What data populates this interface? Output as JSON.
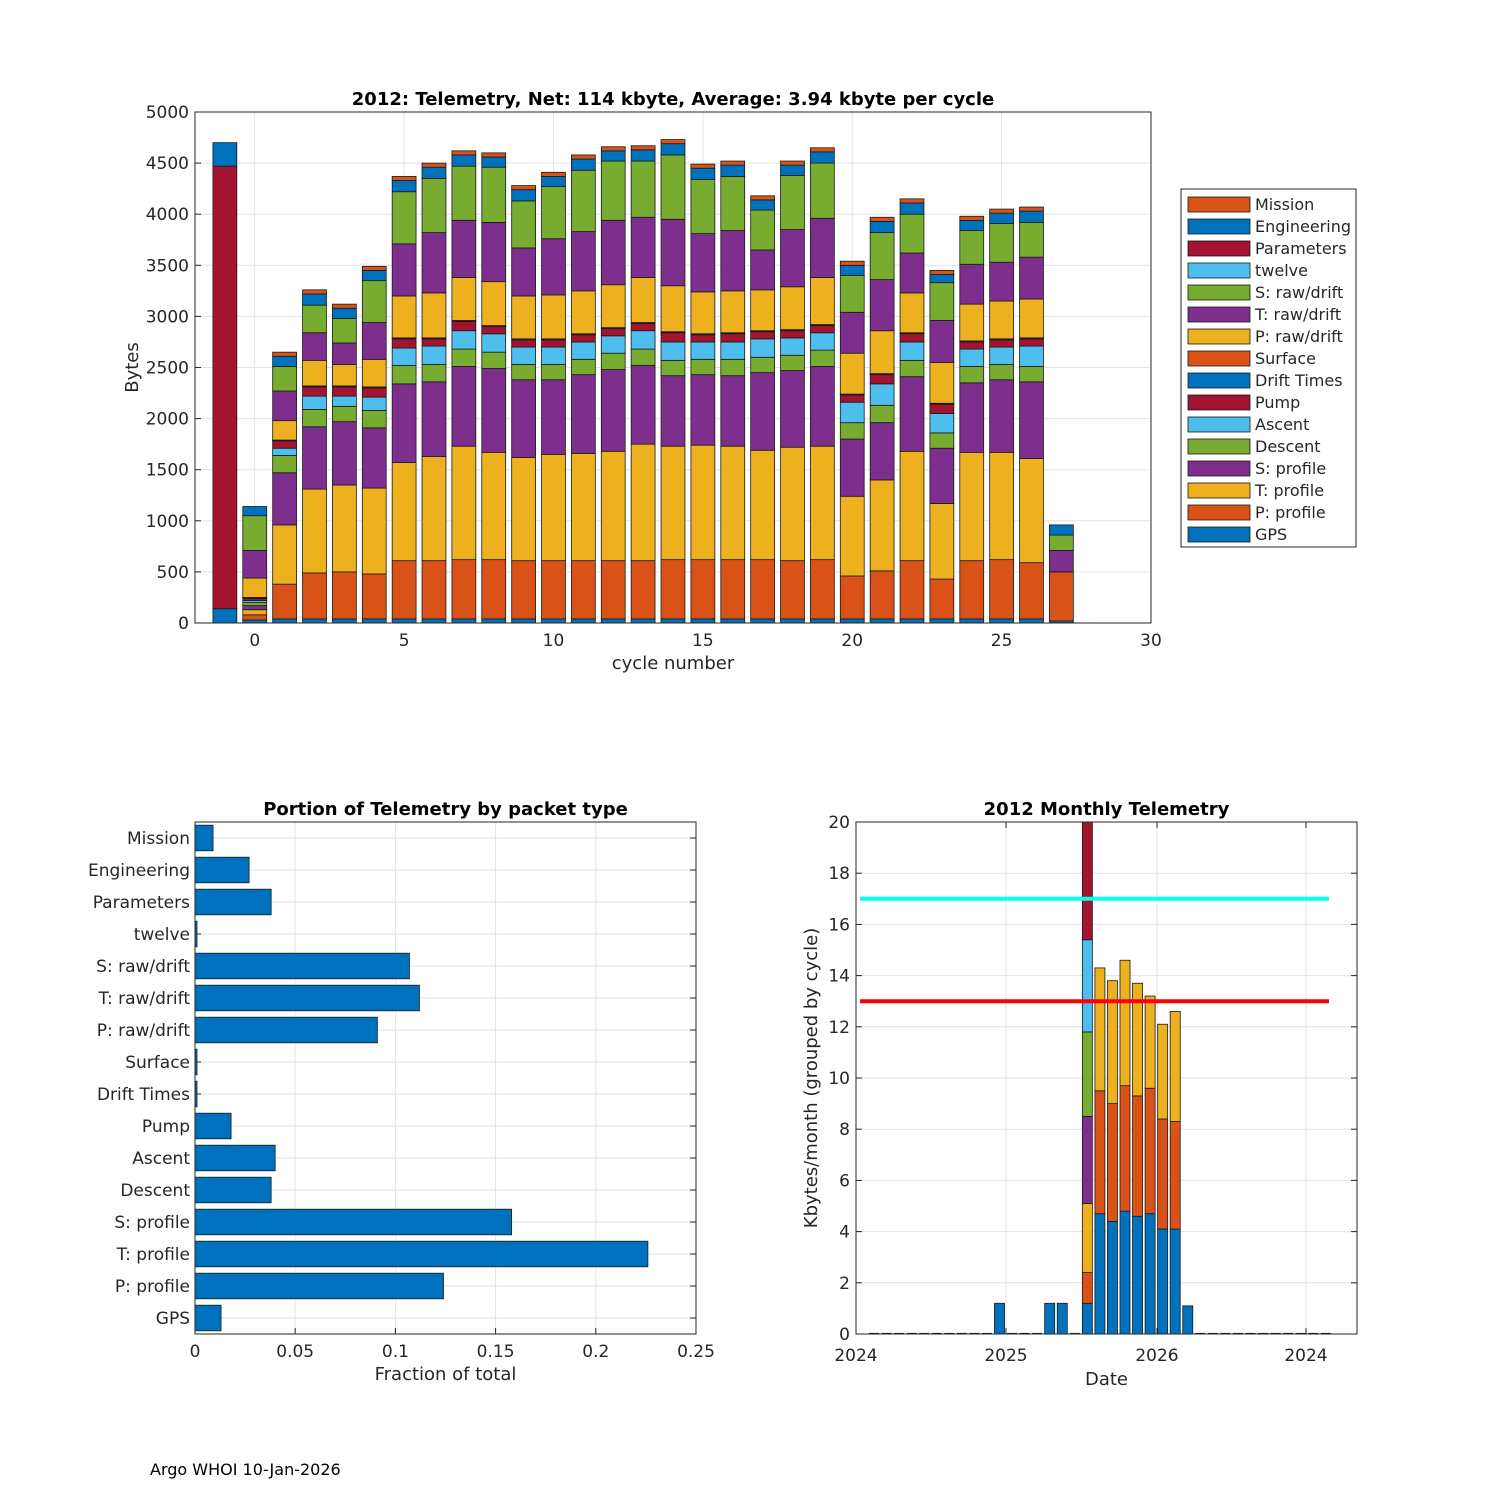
{
  "footer": "Argo WHOI 10-Jan-2026",
  "colors": {
    "Mission": "#D95319",
    "Engineering": "#0072BD",
    "Parameters": "#A2142F",
    "twelve": "#4DBEEE",
    "S: raw/drift": "#77AC30",
    "T: raw/drift": "#7E2F8E",
    "P: raw/drift": "#EDB120",
    "Surface": "#D95319",
    "Drift Times": "#0072BD",
    "Pump": "#A2142F",
    "Ascent": "#4DBEEE",
    "Descent": "#77AC30",
    "S: profile": "#7E2F8E",
    "T: profile": "#EDB120",
    "P: profile": "#D95319",
    "GPS": "#0072BD"
  },
  "chart_data": [
    {
      "type": "bar",
      "stacked": true,
      "title": "2012: Telemetry, Net:    114 kbyte,  Average: 3.94 kbyte per cycle",
      "xlabel": "cycle number",
      "ylabel": "Bytes",
      "xlim": [
        -2,
        30
      ],
      "ylim": [
        0,
        5000
      ],
      "xticks": [
        0,
        5,
        10,
        15,
        20,
        25,
        30
      ],
      "yticks": [
        0,
        500,
        1000,
        1500,
        2000,
        2500,
        3000,
        3500,
        4000,
        4500,
        5000
      ],
      "legend_position": "right",
      "legend": [
        "Mission",
        "Engineering",
        "Parameters",
        "twelve",
        "S: raw/drift",
        "T: raw/drift",
        "P: raw/drift",
        "Surface",
        "Drift Times",
        "Pump",
        "Ascent",
        "Descent",
        "S: profile",
        "T: profile",
        "P: profile",
        "GPS"
      ],
      "stack_order": [
        "GPS",
        "P: profile",
        "T: profile",
        "S: profile",
        "Descent",
        "Ascent",
        "Pump",
        "Drift Times",
        "Surface",
        "P: raw/drift",
        "T: raw/drift",
        "S: raw/drift",
        "twelve",
        "Parameters",
        "Engineering",
        "Mission"
      ],
      "cycles": [
        -1,
        0,
        1,
        2,
        3,
        4,
        5,
        6,
        7,
        8,
        9,
        10,
        11,
        12,
        13,
        14,
        15,
        16,
        17,
        18,
        19,
        20,
        21,
        22,
        23,
        24,
        25,
        26,
        27
      ],
      "series": [
        {
          "name": "GPS",
          "values": [
            140,
            30,
            40,
            40,
            40,
            40,
            40,
            40,
            40,
            40,
            40,
            40,
            40,
            40,
            40,
            40,
            40,
            40,
            40,
            40,
            40,
            40,
            40,
            40,
            40,
            40,
            40,
            40,
            20
          ]
        },
        {
          "name": "P: profile",
          "values": [
            0,
            50,
            340,
            450,
            460,
            440,
            570,
            570,
            580,
            580,
            570,
            570,
            570,
            570,
            570,
            580,
            580,
            580,
            580,
            570,
            580,
            420,
            470,
            570,
            390,
            570,
            580,
            550,
            480
          ]
        },
        {
          "name": "T: profile",
          "values": [
            0,
            50,
            580,
            820,
            850,
            840,
            960,
            1020,
            1110,
            1050,
            1010,
            1040,
            1050,
            1070,
            1140,
            1110,
            1120,
            1110,
            1070,
            1110,
            1110,
            780,
            890,
            1070,
            740,
            1060,
            1050,
            1020,
            0
          ]
        },
        {
          "name": "S: profile",
          "values": [
            0,
            40,
            510,
            610,
            620,
            590,
            770,
            730,
            780,
            820,
            760,
            730,
            770,
            800,
            770,
            690,
            690,
            690,
            760,
            750,
            780,
            560,
            560,
            730,
            540,
            680,
            710,
            750,
            0
          ]
        },
        {
          "name": "Descent",
          "values": [
            0,
            30,
            170,
            170,
            150,
            170,
            180,
            170,
            170,
            160,
            150,
            150,
            150,
            160,
            160,
            150,
            150,
            160,
            150,
            150,
            160,
            160,
            170,
            160,
            150,
            160,
            150,
            150,
            0
          ]
        },
        {
          "name": "Ascent",
          "values": [
            0,
            20,
            70,
            130,
            100,
            130,
            170,
            180,
            180,
            180,
            170,
            170,
            170,
            170,
            180,
            180,
            170,
            170,
            180,
            170,
            170,
            200,
            210,
            180,
            190,
            170,
            170,
            200,
            0
          ]
        },
        {
          "name": "Pump",
          "values": [
            0,
            20,
            70,
            90,
            90,
            90,
            90,
            70,
            90,
            70,
            70,
            70,
            70,
            70,
            70,
            90,
            70,
            80,
            70,
            70,
            70,
            70,
            90,
            80,
            90,
            70,
            70,
            70,
            0
          ]
        },
        {
          "name": "Drift Times",
          "values": [
            0,
            5,
            5,
            5,
            5,
            5,
            5,
            5,
            5,
            5,
            5,
            5,
            5,
            5,
            5,
            5,
            5,
            5,
            5,
            5,
            5,
            5,
            5,
            5,
            5,
            5,
            5,
            5,
            0
          ]
        },
        {
          "name": "Surface",
          "values": [
            0,
            5,
            5,
            5,
            5,
            5,
            5,
            5,
            5,
            5,
            5,
            5,
            5,
            5,
            5,
            5,
            5,
            5,
            5,
            5,
            5,
            5,
            5,
            5,
            5,
            5,
            5,
            5,
            0
          ]
        },
        {
          "name": "P: raw/drift",
          "values": [
            0,
            190,
            190,
            250,
            210,
            270,
            410,
            440,
            420,
            430,
            420,
            430,
            420,
            420,
            440,
            450,
            410,
            410,
            400,
            420,
            460,
            400,
            420,
            390,
            400,
            360,
            370,
            380,
            0
          ]
        },
        {
          "name": "T: raw/drift",
          "values": [
            0,
            270,
            290,
            270,
            210,
            360,
            510,
            590,
            560,
            580,
            470,
            550,
            580,
            630,
            590,
            650,
            570,
            590,
            390,
            560,
            580,
            400,
            500,
            390,
            410,
            390,
            380,
            410,
            210
          ]
        },
        {
          "name": "S: raw/drift",
          "values": [
            0,
            340,
            240,
            270,
            240,
            410,
            510,
            530,
            530,
            540,
            460,
            510,
            600,
            580,
            550,
            630,
            530,
            530,
            390,
            530,
            540,
            360,
            460,
            380,
            370,
            330,
            380,
            340,
            150
          ]
        },
        {
          "name": "twelve",
          "values": [
            0,
            0,
            0,
            0,
            0,
            0,
            0,
            0,
            0,
            0,
            0,
            0,
            0,
            0,
            0,
            0,
            0,
            0,
            0,
            0,
            0,
            0,
            0,
            0,
            0,
            0,
            0,
            0,
            0
          ]
        },
        {
          "name": "Parameters",
          "values": [
            4330,
            0,
            0,
            0,
            0,
            0,
            0,
            0,
            0,
            0,
            0,
            0,
            0,
            0,
            0,
            0,
            0,
            0,
            0,
            0,
            0,
            0,
            0,
            0,
            0,
            0,
            0,
            0,
            0
          ]
        },
        {
          "name": "Engineering",
          "values": [
            230,
            90,
            100,
            110,
            100,
            100,
            110,
            110,
            110,
            100,
            110,
            100,
            110,
            100,
            110,
            110,
            110,
            110,
            100,
            100,
            110,
            100,
            110,
            110,
            80,
            100,
            100,
            110,
            100
          ]
        },
        {
          "name": "Mission",
          "values": [
            0,
            0,
            40,
            40,
            40,
            40,
            40,
            40,
            40,
            40,
            40,
            40,
            40,
            40,
            40,
            40,
            40,
            40,
            40,
            40,
            40,
            40,
            40,
            40,
            40,
            40,
            40,
            40,
            0
          ]
        }
      ]
    },
    {
      "type": "bar",
      "orientation": "horizontal",
      "title": "Portion of Telemetry by packet type",
      "xlabel": "Fraction of total",
      "xlim": [
        0,
        0.25
      ],
      "xticks": [
        "0",
        "0.05",
        "0.1",
        "0.15",
        "0.2",
        "0.25"
      ],
      "categories": [
        "Mission",
        "Engineering",
        "Parameters",
        "twelve",
        "S: raw/drift",
        "T: raw/drift",
        "P: raw/drift",
        "Surface",
        "Drift Times",
        "Pump",
        "Ascent",
        "Descent",
        "S: profile",
        "T: profile",
        "P: profile",
        "GPS"
      ],
      "values": [
        0.009,
        0.027,
        0.038,
        0.001,
        0.107,
        0.112,
        0.091,
        0.001,
        0.001,
        0.018,
        0.04,
        0.038,
        0.158,
        0.226,
        0.124,
        0.013
      ]
    },
    {
      "type": "bar",
      "stacked": true,
      "title": "2012 Monthly Telemetry",
      "xlabel": "Date",
      "ylabel": "Kbytes/month (grouped by cycle)",
      "ylim": [
        0,
        20
      ],
      "yticks": [
        0,
        2,
        4,
        6,
        8,
        10,
        12,
        14,
        16,
        18,
        20
      ],
      "xticks": [
        "2024",
        "2025",
        "2026",
        "2024"
      ],
      "reference_lines": [
        {
          "y": 17,
          "color": "#00FFFF"
        },
        {
          "y": 13,
          "color": "#FF0000"
        }
      ],
      "month_index": [
        0,
        1,
        2,
        3,
        4,
        5,
        6,
        7,
        8,
        9,
        10,
        11,
        12,
        13,
        14,
        15,
        16,
        17,
        18,
        19,
        20,
        21,
        22,
        23,
        24,
        25,
        26,
        27,
        28,
        29,
        30,
        31,
        32,
        33,
        34,
        35,
        36
      ],
      "series": [
        {
          "name": "GPS",
          "color": "#0072BD",
          "values": [
            0,
            0,
            0,
            0,
            0,
            0,
            0,
            0,
            0,
            0,
            1.2,
            0,
            0,
            0,
            1.2,
            1.2,
            0,
            1.2,
            4.7,
            4.4,
            4.8,
            4.6,
            4.7,
            4.1,
            4.1,
            1.1,
            0,
            0,
            0,
            0,
            0,
            0,
            0,
            0,
            0,
            0,
            0
          ]
        },
        {
          "name": "P: profile",
          "color": "#D95319",
          "values": [
            0,
            0,
            0,
            0,
            0,
            0,
            0,
            0,
            0,
            0,
            0,
            0,
            0,
            0,
            0,
            0,
            0,
            1.2,
            4.8,
            4.6,
            4.9,
            4.7,
            4.9,
            4.3,
            4.2,
            0,
            0,
            0,
            0,
            0,
            0,
            0,
            0,
            0,
            0,
            0,
            0
          ]
        },
        {
          "name": "T: profile",
          "color": "#EDB120",
          "values": [
            0,
            0,
            0,
            0,
            0,
            0,
            0,
            0,
            0,
            0,
            0,
            0,
            0,
            0,
            0,
            0,
            0,
            2.7,
            4.8,
            4.8,
            4.9,
            4.4,
            3.6,
            3.7,
            4.3,
            0,
            0,
            0,
            0,
            0,
            0,
            0,
            0,
            0,
            0,
            0,
            0
          ]
        },
        {
          "name": "S: profile",
          "color": "#7E2F8E",
          "values": [
            0,
            0,
            0,
            0,
            0,
            0,
            0,
            0,
            0,
            0,
            0,
            0,
            0,
            0,
            0,
            0,
            0,
            3.4,
            0,
            0,
            0,
            0,
            0,
            0,
            0,
            0,
            0,
            0,
            0,
            0,
            0,
            0,
            0,
            0,
            0,
            0,
            0
          ]
        },
        {
          "name": "Descent",
          "color": "#77AC30",
          "values": [
            0,
            0,
            0,
            0,
            0,
            0,
            0,
            0,
            0,
            0,
            0,
            0,
            0,
            0,
            0,
            0,
            0,
            3.3,
            0,
            0,
            0,
            0,
            0,
            0,
            0,
            0,
            0,
            0,
            0,
            0,
            0,
            0,
            0,
            0,
            0,
            0,
            0
          ]
        },
        {
          "name": "Ascent",
          "color": "#4DBEEE",
          "values": [
            0,
            0,
            0,
            0,
            0,
            0,
            0,
            0,
            0,
            0,
            0,
            0,
            0,
            0,
            0,
            0,
            0,
            3.6,
            0,
            0,
            0,
            0,
            0,
            0,
            0,
            0,
            0,
            0,
            0,
            0,
            0,
            0,
            0,
            0,
            0,
            0,
            0
          ]
        },
        {
          "name": "Parameters",
          "color": "#A2142F",
          "values": [
            0,
            0,
            0,
            0,
            0,
            0,
            0,
            0,
            0,
            0,
            0,
            0,
            0,
            0,
            0,
            0,
            0,
            4.6,
            0,
            0,
            0,
            0,
            0,
            0,
            0,
            0,
            0,
            0,
            0,
            0,
            0,
            0,
            0,
            0,
            0,
            0,
            0
          ]
        }
      ]
    }
  ]
}
